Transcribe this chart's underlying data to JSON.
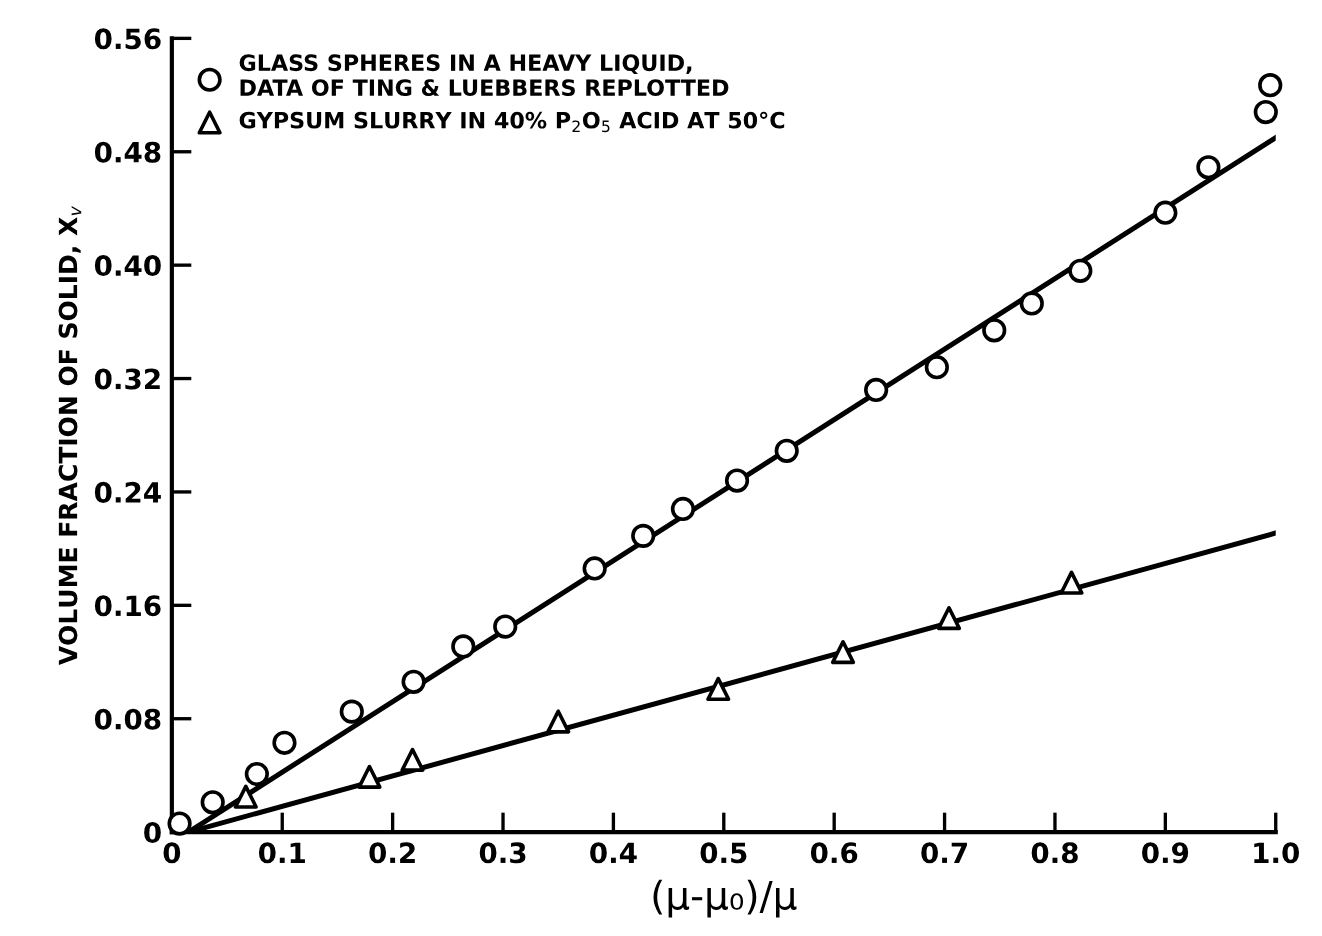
{
  "chart_data": {
    "type": "scatter",
    "xlabel": "(μ-μ₀)/μ",
    "ylabel": "VOLUME FRACTION OF SOLID, X$_{v}$",
    "xlim": [
      0,
      1.0
    ],
    "ylim": [
      0,
      0.56
    ],
    "xticks": [
      0,
      0.1,
      0.2,
      0.3,
      0.4,
      0.5,
      0.6,
      0.7,
      0.8,
      0.9,
      {
        "value": 1.0,
        "label": "1.0"
      }
    ],
    "yticks": [
      0,
      0.08,
      0.16,
      0.24,
      0.32,
      {
        "value": 0.4,
        "label": "0.40"
      },
      0.48,
      0.56
    ],
    "grid": false,
    "legend": "top left",
    "series": [
      {
        "name": "GLASS SPHERES IN A HEAVY LIQUID,\nDATA OF TING & LUEBBERS REPLOTTED",
        "color": "#000000",
        "marker": "circle",
        "x": [
          0.007,
          0.037,
          0.077,
          0.102,
          0.163,
          0.219,
          0.264,
          0.302,
          0.383,
          0.427,
          0.463,
          0.512,
          0.557,
          0.638,
          0.693,
          0.745,
          0.779,
          0.823,
          0.9,
          0.939,
          0.991,
          0.995
        ],
        "values": [
          0.006,
          0.021,
          0.041,
          0.063,
          0.085,
          0.106,
          0.131,
          0.145,
          0.186,
          0.209,
          0.228,
          0.248,
          0.269,
          0.312,
          0.328,
          0.354,
          0.373,
          0.396,
          0.437,
          0.469,
          0.508,
          0.527
        ]
      },
      {
        "name": "GYPSUM SLURRY IN 40% P$_{2}$O$_{5}$ ACID AT 50°C",
        "color": "#000000",
        "marker": "triangle",
        "x": [
          0.067,
          0.179,
          0.218,
          0.35,
          0.495,
          0.608,
          0.704,
          0.815
        ],
        "values": [
          0.025,
          0.039,
          0.051,
          0.078,
          0.101,
          0.127,
          0.151,
          0.176
        ]
      },
      {
        "type": "line",
        "color": "#000000",
        "x": [
          0.015,
          1.0
        ],
        "values": [
          0,
          0.49
        ]
      },
      {
        "type": "line",
        "color": "#000000",
        "x": [
          0.015,
          1.0
        ],
        "values": [
          0,
          0.211
        ]
      }
    ]
  }
}
